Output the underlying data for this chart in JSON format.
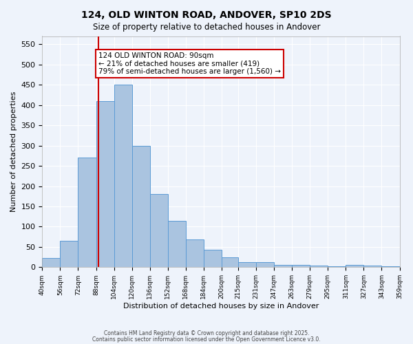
{
  "title": "124, OLD WINTON ROAD, ANDOVER, SP10 2DS",
  "subtitle": "Size of property relative to detached houses in Andover",
  "xlabel": "Distribution of detached houses by size in Andover",
  "ylabel": "Number of detached properties",
  "bar_color": "#aac4e0",
  "bar_edge_color": "#5b9bd5",
  "background_color": "#eef3fb",
  "grid_color": "#ffffff",
  "red_line_x": 90,
  "annotation_text": "124 OLD WINTON ROAD: 90sqm\n← 21% of detached houses are smaller (419)\n79% of semi-detached houses are larger (1,560) →",
  "annotation_box_color": "#ffffff",
  "annotation_border_color": "#cc0000",
  "footer_line1": "Contains HM Land Registry data © Crown copyright and database right 2025.",
  "footer_line2": "Contains public sector information licensed under the Open Government Licence v3.0.",
  "bin_edges": [
    40,
    56,
    72,
    88,
    104,
    120,
    136,
    152,
    168,
    184,
    200,
    215,
    231,
    247,
    263,
    279,
    295,
    311,
    327,
    343,
    359
  ],
  "bin_labels": [
    "40sqm",
    "56sqm",
    "72sqm",
    "88sqm",
    "104sqm",
    "120sqm",
    "136sqm",
    "152sqm",
    "168sqm",
    "184sqm",
    "200sqm",
    "215sqm",
    "231sqm",
    "247sqm",
    "263sqm",
    "279sqm",
    "295sqm",
    "311sqm",
    "327sqm",
    "343sqm",
    "359sqm"
  ],
  "counts": [
    23,
    65,
    270,
    410,
    450,
    300,
    180,
    115,
    68,
    43,
    25,
    13,
    12,
    6,
    5,
    4,
    3,
    5,
    4,
    3
  ],
  "ylim": [
    0,
    570
  ],
  "yticks": [
    0,
    50,
    100,
    150,
    200,
    250,
    300,
    350,
    400,
    450,
    500,
    550
  ]
}
